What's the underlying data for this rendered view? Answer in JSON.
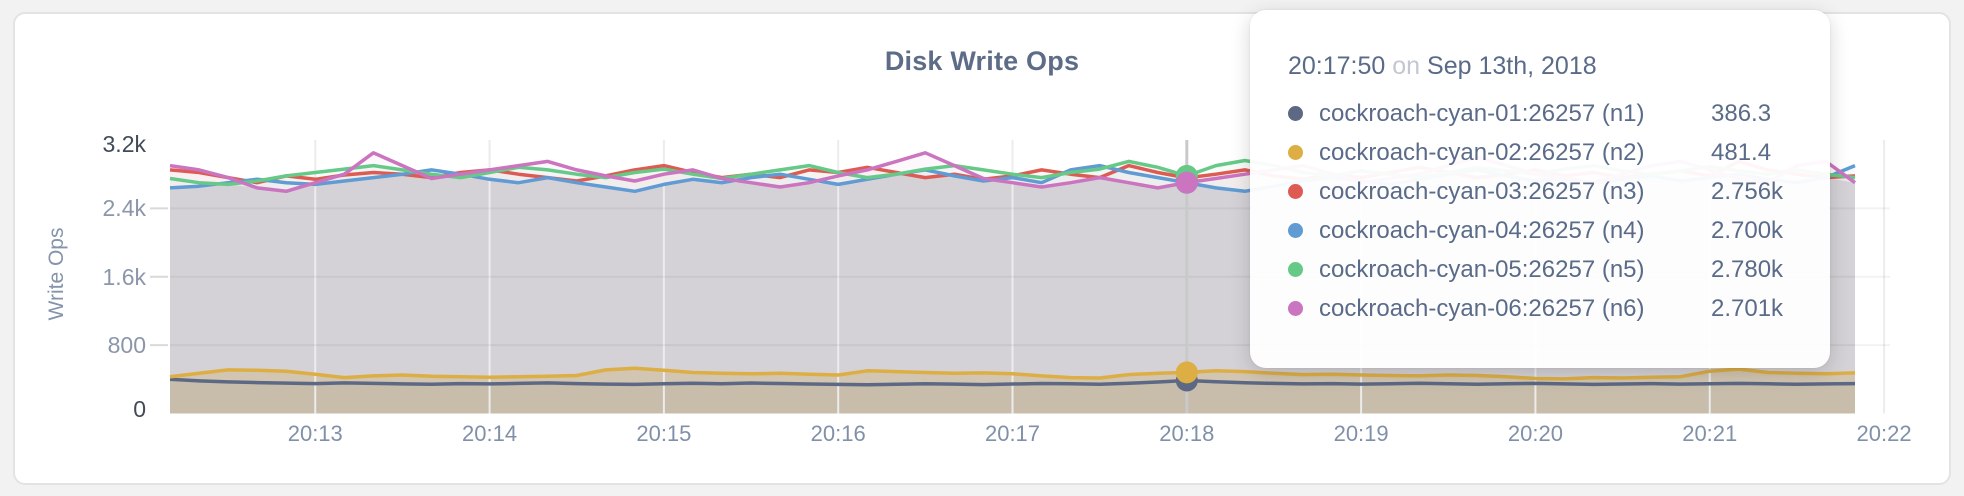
{
  "page": {
    "background": "#f2f2f2"
  },
  "panel": {
    "background": "#ffffff",
    "border_color": "#e3e3e3"
  },
  "chart": {
    "title": "Disk Write Ops",
    "ylabel": "Write Ops"
  },
  "tooltip": {
    "time": "20:17:50",
    "conjunction": "on",
    "date": "Sep 13th, 2018",
    "rows": [
      {
        "label": "cockroach-cyan-01:26257 (n1)",
        "value": "386.3",
        "color": "#5d6984"
      },
      {
        "label": "cockroach-cyan-02:26257 (n2)",
        "value": "481.4",
        "color": "#ddae44"
      },
      {
        "label": "cockroach-cyan-03:26257 (n3)",
        "value": "2.756k",
        "color": "#dd5b52"
      },
      {
        "label": "cockroach-cyan-04:26257 (n4)",
        "value": "2.700k",
        "color": "#609bd3"
      },
      {
        "label": "cockroach-cyan-05:26257 (n5)",
        "value": "2.780k",
        "color": "#67c987"
      },
      {
        "label": "cockroach-cyan-06:26257 (n6)",
        "value": "2.701k",
        "color": "#cb74c0"
      }
    ]
  },
  "chart_data": {
    "type": "line",
    "title": "Disk Write Ops",
    "xlabel": "",
    "ylabel": "Write Ops",
    "ylim": [
      0,
      3200
    ],
    "grid": true,
    "legend_position": "tooltip",
    "y_tick_values": [
      0,
      800,
      1600,
      2400,
      3200
    ],
    "y_tick_labels": [
      "0",
      "800",
      "1.6k",
      "2.4k",
      "3.2k"
    ],
    "x_tick_labels": [
      "20:13",
      "20:14",
      "20:15",
      "20:16",
      "20:17",
      "20:18",
      "20:19",
      "20:20",
      "20:21",
      "20:22"
    ],
    "x_start_time": "20:12:10",
    "x_interval_seconds": 10,
    "hover": {
      "index": 35,
      "time": "20:17:50",
      "date": "Sep 13th, 2018",
      "values": [
        386.3,
        481.4,
        2756,
        2700,
        2780,
        2701
      ]
    },
    "colors": {
      "grid_vertical": "#ececed",
      "grid_horizontal": "rgba(0,0,0,0.05)",
      "axis_tick_dash": "#d9d9d9",
      "hover_guideline": "#c9c9c9",
      "base_area_fill": "#e4e3e5"
    },
    "series": [
      {
        "name": "cockroach-cyan-01:26257 (n1)",
        "short": "n1",
        "color": "#5d6984",
        "group": "low",
        "fill_opacity": 0.13,
        "values": [
          400,
          382,
          370,
          362,
          356,
          350,
          358,
          352,
          346,
          342,
          350,
          346,
          352,
          358,
          350,
          344,
          340,
          347,
          354,
          349,
          357,
          351,
          345,
          340,
          336,
          342,
          349,
          344,
          338,
          345,
          351,
          347,
          342,
          354,
          368,
          386.3,
          372,
          360,
          352,
          346,
          350,
          344,
          349,
          355,
          348,
          342,
          347,
          352,
          346,
          340,
          345,
          350,
          344,
          348,
          352,
          347,
          342,
          346,
          350
        ]
      },
      {
        "name": "cockroach-cyan-02:26257 (n2)",
        "short": "n2",
        "color": "#ddae44",
        "group": "low",
        "fill_opacity": 0.28,
        "values": [
          430,
          470,
          510,
          505,
          495,
          460,
          420,
          440,
          450,
          435,
          430,
          425,
          430,
          435,
          445,
          510,
          530,
          505,
          480,
          470,
          465,
          470,
          460,
          450,
          500,
          490,
          480,
          470,
          475,
          465,
          440,
          420,
          415,
          455,
          470,
          481.4,
          500,
          490,
          470,
          455,
          460,
          450,
          445,
          440,
          450,
          445,
          430,
          410,
          405,
          420,
          415,
          425,
          430,
          495,
          520,
          480,
          470,
          465,
          475
        ]
      },
      {
        "name": "cockroach-cyan-03:26257 (n3)",
        "short": "n3",
        "color": "#dd5b52",
        "group": "high",
        "fill_opacity": 0.05,
        "values": [
          2850,
          2820,
          2760,
          2700,
          2780,
          2740,
          2790,
          2820,
          2800,
          2760,
          2820,
          2850,
          2800,
          2760,
          2720,
          2780,
          2850,
          2900,
          2820,
          2760,
          2800,
          2760,
          2850,
          2820,
          2880,
          2820,
          2760,
          2800,
          2740,
          2780,
          2850,
          2800,
          2760,
          2900,
          2820,
          2756,
          2800,
          2850,
          2780,
          2740,
          2800,
          2760,
          2820,
          2880,
          2820,
          2760,
          2800,
          2850,
          2780,
          2820,
          2760,
          2800,
          2840,
          2780,
          2950,
          2850,
          2800,
          2760,
          2780
        ]
      },
      {
        "name": "cockroach-cyan-04:26257 (n4)",
        "short": "n4",
        "color": "#609bd3",
        "group": "high",
        "fill_opacity": 0.05,
        "values": [
          2640,
          2660,
          2700,
          2740,
          2700,
          2680,
          2720,
          2760,
          2800,
          2850,
          2800,
          2740,
          2700,
          2760,
          2700,
          2650,
          2600,
          2680,
          2740,
          2700,
          2760,
          2800,
          2740,
          2680,
          2740,
          2800,
          2850,
          2780,
          2720,
          2760,
          2700,
          2850,
          2900,
          2820,
          2760,
          2700,
          2640,
          2600,
          2660,
          2720,
          2760,
          2720,
          2680,
          2740,
          2800,
          2850,
          2780,
          2720,
          2760,
          2700,
          2740,
          2780,
          2720,
          2760,
          2800,
          2740,
          2700,
          2760,
          2900
        ]
      },
      {
        "name": "cockroach-cyan-05:26257 (n5)",
        "short": "n5",
        "color": "#67c987",
        "group": "high",
        "fill_opacity": 0.05,
        "values": [
          2750,
          2700,
          2680,
          2720,
          2780,
          2820,
          2860,
          2900,
          2850,
          2800,
          2760,
          2820,
          2880,
          2850,
          2800,
          2760,
          2820,
          2860,
          2800,
          2750,
          2800,
          2850,
          2900,
          2820,
          2760,
          2800,
          2860,
          2900,
          2850,
          2800,
          2760,
          2820,
          2860,
          2950,
          2880,
          2780,
          2900,
          2960,
          2900,
          2820,
          2780,
          2840,
          2800,
          2760,
          2820,
          2880,
          2840,
          2800,
          2860,
          2900,
          2840,
          2790,
          2840,
          2890,
          2840,
          2800,
          2850,
          2800,
          2760
        ]
      },
      {
        "name": "cockroach-cyan-06:26257 (n6)",
        "short": "n6",
        "color": "#cb74c0",
        "group": "high",
        "fill_opacity": 0.05,
        "values": [
          2900,
          2850,
          2760,
          2640,
          2600,
          2700,
          2800,
          3050,
          2900,
          2750,
          2800,
          2850,
          2900,
          2950,
          2850,
          2780,
          2720,
          2800,
          2850,
          2750,
          2700,
          2650,
          2700,
          2780,
          2850,
          2950,
          3050,
          2900,
          2750,
          2700,
          2650,
          2700,
          2760,
          2700,
          2640,
          2701,
          2750,
          2800,
          2850,
          2900,
          2800,
          2700,
          2750,
          2800,
          2900,
          3000,
          2900,
          2800,
          2750,
          2700,
          2800,
          2900,
          2950,
          2850,
          2750,
          2700,
          2900,
          2950,
          2700
        ]
      }
    ]
  }
}
